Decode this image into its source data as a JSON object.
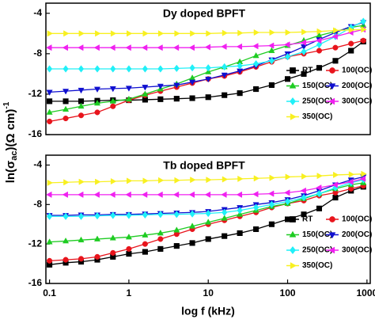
{
  "y_label": [
    "ln(σ",
    "ac",
    ")(Ω cm)",
    "-1"
  ],
  "chart_data": [
    {
      "type": "line",
      "title": "Dy doped BPFT",
      "log_x": true,
      "legend": "lower right",
      "xlim": [
        0.09,
        1100
      ],
      "ylim": [
        -16,
        -3
      ],
      "yticks": [
        -4,
        -8,
        -12,
        -16
      ],
      "xticks": [],
      "x": [
        0.1,
        0.16,
        0.25,
        0.4,
        0.63,
        1,
        1.6,
        2.5,
        4,
        6.3,
        10,
        16,
        25,
        40,
        63,
        100,
        160,
        250,
        400,
        630,
        900
      ],
      "series": [
        {
          "name": "RT",
          "color": "#000000",
          "marker": "square",
          "values": [
            -12.7,
            -12.7,
            -12.7,
            -12.65,
            -12.6,
            -12.6,
            -12.55,
            -12.5,
            -12.45,
            -12.4,
            -12.3,
            -12.1,
            -11.9,
            -11.5,
            -11.1,
            -10.5,
            -10.0,
            -9.4,
            -8.7,
            -7.7,
            -6.8
          ]
        },
        {
          "name": "100(OC)",
          "color": "#e8141c",
          "marker": "circle",
          "values": [
            -14.7,
            -14.4,
            -14.1,
            -13.8,
            -13.2,
            -12.6,
            -12.1,
            -11.7,
            -11.3,
            -10.9,
            -10.5,
            -10.2,
            -9.8,
            -9.3,
            -8.8,
            -8.3,
            -8.0,
            -7.7,
            -7.4,
            -7.0,
            -6.7
          ]
        },
        {
          "name": "150(OC)",
          "color": "#1ecc22",
          "marker": "up",
          "values": [
            -13.8,
            -13.5,
            -13.2,
            -12.9,
            -12.7,
            -12.5,
            -12.0,
            -11.5,
            -11.0,
            -10.4,
            -9.8,
            -9.3,
            -8.8,
            -8.2,
            -7.7,
            -7.2,
            -6.7,
            -6.2,
            -5.8,
            -5.4,
            -5.2
          ]
        },
        {
          "name": "200(OC)",
          "color": "#1010d0",
          "marker": "down",
          "values": [
            -11.8,
            -11.7,
            -11.6,
            -11.5,
            -11.45,
            -11.4,
            -11.3,
            -11.2,
            -11.1,
            -10.8,
            -10.5,
            -10.1,
            -9.7,
            -9.2,
            -8.6,
            -8.0,
            -7.3,
            -6.6,
            -5.9,
            -5.3,
            -4.9
          ]
        },
        {
          "name": "250(OC)",
          "color": "#20f0f8",
          "marker": "diamond",
          "values": [
            -9.5,
            -9.5,
            -9.5,
            -9.5,
            -9.5,
            -9.5,
            -9.5,
            -9.5,
            -9.45,
            -9.4,
            -9.4,
            -9.3,
            -9.2,
            -9.0,
            -8.7,
            -8.3,
            -7.8,
            -7.1,
            -6.3,
            -5.4,
            -4.8
          ]
        },
        {
          "name": "300(OC)",
          "color": "#f020f0",
          "marker": "left",
          "values": [
            -7.4,
            -7.4,
            -7.4,
            -7.4,
            -7.4,
            -7.4,
            -7.4,
            -7.4,
            -7.4,
            -7.4,
            -7.35,
            -7.3,
            -7.3,
            -7.25,
            -7.2,
            -7.1,
            -6.9,
            -6.7,
            -6.3,
            -5.9,
            -5.6
          ]
        },
        {
          "name": "350(OC)",
          "color": "#f8f020",
          "marker": "right",
          "values": [
            -6.0,
            -6.0,
            -6.0,
            -6.0,
            -6.0,
            -6.0,
            -6.0,
            -6.0,
            -6.0,
            -6.0,
            -6.0,
            -5.95,
            -5.95,
            -5.9,
            -5.9,
            -5.9,
            -5.85,
            -5.8,
            -5.7,
            -5.65,
            -5.6
          ]
        }
      ]
    },
    {
      "type": "line",
      "title": "Tb doped BPFT",
      "log_x": true,
      "legend": "lower right",
      "x_label": "log f (kHz)",
      "xlim": [
        0.09,
        1100
      ],
      "ylim": [
        -16,
        -3
      ],
      "yticks": [
        -4,
        -8,
        -12,
        -16
      ],
      "xticks": [
        0.1,
        1,
        10,
        100,
        1000
      ],
      "x": [
        0.1,
        0.16,
        0.25,
        0.4,
        0.63,
        1,
        1.6,
        2.5,
        4,
        6.3,
        10,
        16,
        25,
        40,
        63,
        100,
        160,
        250,
        400,
        630,
        900
      ],
      "series": [
        {
          "name": "RT",
          "color": "#000000",
          "marker": "square",
          "values": [
            -14.1,
            -13.9,
            -13.8,
            -13.6,
            -13.3,
            -13.0,
            -12.8,
            -12.5,
            -12.2,
            -11.9,
            -11.5,
            -11.2,
            -10.9,
            -10.5,
            -10.0,
            -9.5,
            -9.0,
            -8.4,
            -7.3,
            -6.6,
            -6.2
          ]
        },
        {
          "name": "100(OC)",
          "color": "#e8141c",
          "marker": "circle",
          "values": [
            -13.7,
            -13.6,
            -13.5,
            -13.3,
            -12.9,
            -12.5,
            -12.0,
            -11.5,
            -11.0,
            -10.5,
            -10.0,
            -9.6,
            -9.2,
            -8.8,
            -8.3,
            -7.9,
            -7.6,
            -7.1,
            -6.8,
            -6.4,
            -6.1
          ]
        },
        {
          "name": "150(OC)",
          "color": "#1ecc22",
          "marker": "up",
          "values": [
            -11.8,
            -11.7,
            -11.6,
            -11.5,
            -11.4,
            -11.3,
            -11.1,
            -10.9,
            -10.6,
            -10.2,
            -9.8,
            -9.4,
            -9.0,
            -8.6,
            -8.2,
            -7.9,
            -7.4,
            -6.9,
            -6.4,
            -6.0,
            -5.8
          ]
        },
        {
          "name": "200(OC)",
          "color": "#1010d0",
          "marker": "down",
          "values": [
            -9.1,
            -9.1,
            -9.05,
            -9.05,
            -9.0,
            -9.0,
            -8.95,
            -8.9,
            -8.85,
            -8.8,
            -8.7,
            -8.5,
            -8.3,
            -8.0,
            -7.8,
            -7.5,
            -7.1,
            -6.6,
            -6.0,
            -5.5,
            -5.2
          ]
        },
        {
          "name": "250(OC)",
          "color": "#20f0f8",
          "marker": "diamond",
          "values": [
            -9.2,
            -9.2,
            -9.2,
            -9.15,
            -9.1,
            -9.1,
            -9.05,
            -9.0,
            -9.0,
            -8.95,
            -8.9,
            -8.8,
            -8.6,
            -8.3,
            -8.0,
            -7.7,
            -7.3,
            -6.9,
            -6.3,
            -5.8,
            -5.5
          ]
        },
        {
          "name": "300(OC)",
          "color": "#f020f0",
          "marker": "left",
          "values": [
            -7.0,
            -7.0,
            -7.0,
            -7.0,
            -7.0,
            -7.0,
            -7.0,
            -7.0,
            -7.0,
            -7.0,
            -7.0,
            -7.0,
            -7.0,
            -6.95,
            -6.9,
            -6.8,
            -6.6,
            -6.3,
            -6.0,
            -5.7,
            -5.4
          ]
        },
        {
          "name": "350(OC)",
          "color": "#f8f020",
          "marker": "right",
          "values": [
            -5.8,
            -5.75,
            -5.7,
            -5.7,
            -5.65,
            -5.6,
            -5.6,
            -5.55,
            -5.55,
            -5.5,
            -5.5,
            -5.45,
            -5.4,
            -5.35,
            -5.3,
            -5.2,
            -5.15,
            -5.1,
            -5.0,
            -4.95,
            -4.9
          ]
        }
      ]
    }
  ]
}
